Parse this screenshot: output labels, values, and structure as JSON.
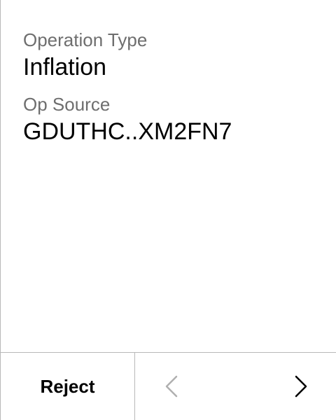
{
  "fields": {
    "operation_type_label": "Operation Type",
    "operation_type_value": "Inflation",
    "op_source_label": "Op Source",
    "op_source_value": "GDUTHC..XM2FN7"
  },
  "footer": {
    "reject_label": "Reject",
    "prev_icon": "chevron-left-icon",
    "next_icon": "chevron-right-icon"
  },
  "colors": {
    "label": "#6e6e6e",
    "value": "#000000",
    "divider": "#b8b8b8",
    "disabled_icon": "#b0b0b0"
  }
}
